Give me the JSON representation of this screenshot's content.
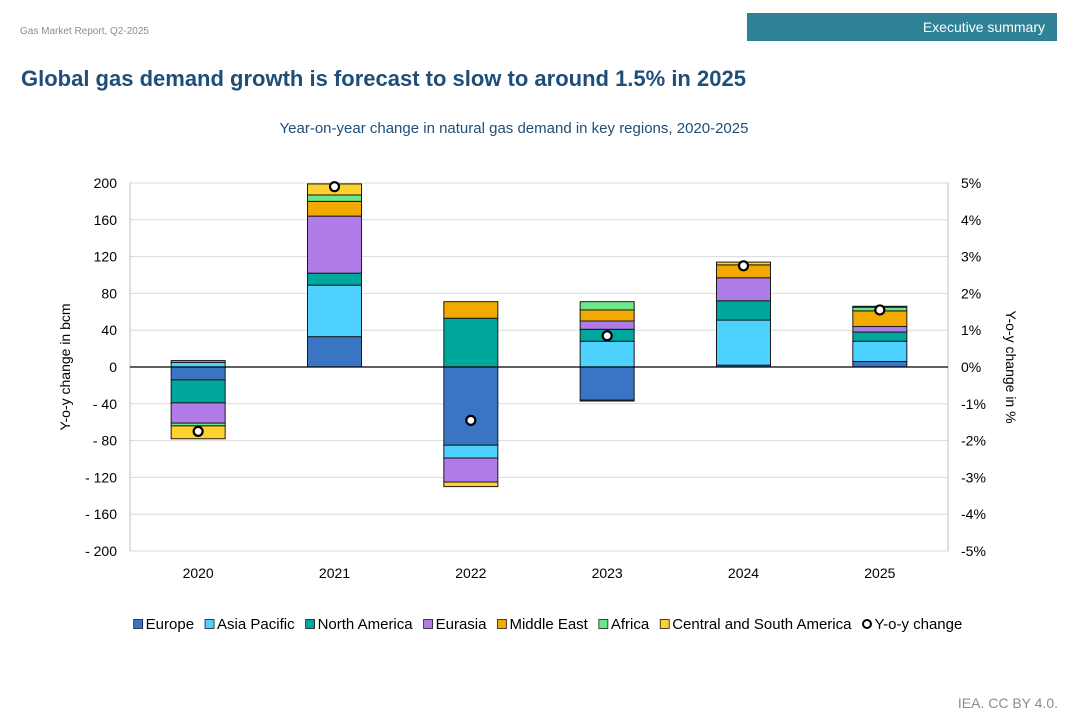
{
  "header": {
    "report_label": "Gas Market Report, Q2-2025",
    "section_tab": "Executive summary"
  },
  "page_title": "Global gas demand growth is forecast to slow to around 1.5% in 2025",
  "footer": {
    "credit": "IEA. CC BY 4.0."
  },
  "colors": {
    "tab_background": "#2e8196",
    "title": "#1f4e79",
    "chart_title": "#1f4e79",
    "text_muted": "#8c8c8c"
  },
  "chart_data": {
    "type": "bar",
    "stacked": true,
    "title": "Year-on-year change in natural gas demand in key regions, 2020-2025",
    "categories": [
      "2020",
      "2021",
      "2022",
      "2023",
      "2024",
      "2025"
    ],
    "ylabel": "Y-o-y change in bcm",
    "y2label": "Y-o-y change in %",
    "ylim": [
      -200,
      200
    ],
    "y2lim": [
      -5,
      5
    ],
    "yticks": [
      200,
      160,
      120,
      80,
      40,
      0,
      -40,
      -80,
      -120,
      -160,
      -200
    ],
    "ytick_labels": [
      "200",
      "160",
      "120",
      "80",
      "40",
      "0",
      "- 40",
      "- 80",
      "- 120",
      "- 160",
      "- 200"
    ],
    "y2tick_labels": [
      "5%",
      "4%",
      "3%",
      "2%",
      "1%",
      "0%",
      "-1%",
      "-2%",
      "-3%",
      "-4%",
      "-5%"
    ],
    "grid": true,
    "legend_position": "bottom",
    "series": [
      {
        "name": "Europe",
        "color": "#3a75c4",
        "values": [
          -14,
          33,
          -85,
          -36,
          2,
          6
        ]
      },
      {
        "name": "Asia Pacific",
        "color": "#4dd2ff",
        "values": [
          5,
          56,
          -14,
          28,
          49,
          22
        ]
      },
      {
        "name": "North America",
        "color": "#00a79d",
        "values": [
          -25,
          13,
          53,
          13,
          21,
          10
        ]
      },
      {
        "name": "Eurasia",
        "color": "#b07ce8",
        "values": [
          -22,
          62,
          -26,
          9,
          25,
          6
        ]
      },
      {
        "name": "Middle East",
        "color": "#f2a900",
        "values": [
          2,
          16,
          18,
          12,
          14,
          17
        ]
      },
      {
        "name": "Africa",
        "color": "#6ee68a",
        "values": [
          -3,
          7,
          0,
          9,
          0,
          4
        ]
      },
      {
        "name": "Central and South America",
        "color": "#ffd12e",
        "values": [
          -14,
          12,
          -5,
          -1,
          3,
          1
        ]
      }
    ],
    "line_series": {
      "name": "Y-o-y change",
      "axis": "secondary",
      "values": [
        -1.75,
        4.9,
        -1.45,
        0.85,
        2.75,
        1.55
      ]
    }
  }
}
